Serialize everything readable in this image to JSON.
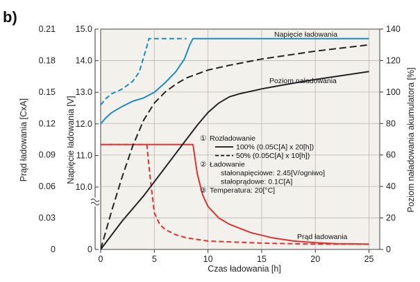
{
  "panel_label": "b)",
  "chart_data": {
    "type": "line",
    "x": {
      "label": "Czas ładowania [h]",
      "range": [
        0,
        26
      ],
      "ticks": [
        0,
        5,
        10,
        15,
        20,
        25
      ],
      "tick_labels": [
        "0",
        "5",
        "10",
        "15",
        "20",
        "25"
      ]
    },
    "y_left_current": {
      "label": "Prąd ładowania [CxA]",
      "range": [
        0,
        0.21
      ],
      "ticks": [
        0,
        0.03,
        0.06,
        0.09,
        0.12,
        0.15,
        0.18,
        0.21
      ],
      "tick_labels": [
        "0",
        "0.03",
        "0.06",
        "0.09",
        "0.12",
        "0.15",
        "0.18",
        "0.21"
      ]
    },
    "y_left_voltage": {
      "label": "Napięcie ładowania [V]",
      "range": [
        0,
        15.0
      ],
      "axis_break": true,
      "ticks": [
        0,
        10.0,
        11.0,
        12.0,
        13.0,
        14.0,
        15.0
      ],
      "tick_labels": [
        "0",
        "10.0",
        "11.0",
        "12.0",
        "13.0",
        "14.0",
        "15.0"
      ]
    },
    "y_right": {
      "label": "Poziom naładowania akumulatora [%]",
      "range": [
        0,
        140
      ],
      "ticks": [
        0,
        20,
        40,
        60,
        80,
        100,
        120,
        140
      ],
      "tick_labels": [
        "0",
        "20",
        "40",
        "60",
        "80",
        "100",
        "120",
        "140"
      ]
    },
    "grid": true,
    "series": [
      {
        "name": "Napięcie ładowania",
        "quantity": "voltage",
        "unit": "V",
        "line": "solid",
        "color": "#1a8bc4",
        "x": [
          0,
          0.5,
          1,
          2,
          3,
          4,
          5,
          6,
          7,
          7.8,
          8.3,
          8.6,
          9,
          12,
          15,
          20,
          25
        ],
        "y": [
          12.0,
          12.2,
          12.35,
          12.55,
          12.72,
          12.82,
          13.0,
          13.3,
          13.65,
          14.05,
          14.5,
          14.7,
          14.7,
          14.7,
          14.7,
          14.7,
          14.7
        ]
      },
      {
        "name": "Napięcie ładowania",
        "quantity": "voltage",
        "unit": "V",
        "line": "dashed",
        "color": "#1a8bc4",
        "x": [
          0,
          0.5,
          1,
          2,
          3,
          3.6,
          4.0,
          4.3,
          4.5,
          5,
          6,
          7,
          8
        ],
        "y": [
          12.6,
          12.8,
          12.95,
          13.1,
          13.35,
          13.65,
          14.1,
          14.45,
          14.7,
          14.7,
          14.7,
          14.7,
          14.7
        ]
      },
      {
        "name": "Prąd ładowania",
        "quantity": "current",
        "unit": "CxA",
        "line": "solid",
        "color": "#e03030",
        "x": [
          0,
          2,
          4,
          6,
          8,
          8.6,
          9,
          9.5,
          10,
          11,
          12,
          14,
          16,
          18,
          20,
          22,
          25
        ],
        "y": [
          0.1,
          0.1,
          0.1,
          0.1,
          0.1,
          0.1,
          0.072,
          0.052,
          0.041,
          0.03,
          0.024,
          0.016,
          0.011,
          0.008,
          0.0065,
          0.0055,
          0.005
        ]
      },
      {
        "name": "Prąd ładowania",
        "quantity": "current",
        "unit": "CxA",
        "line": "dashed",
        "color": "#e03030",
        "x": [
          0,
          2,
          4,
          4.3,
          4.6,
          5,
          5.5,
          6,
          7,
          8,
          10,
          15,
          20,
          25
        ],
        "y": [
          0.1,
          0.1,
          0.1,
          0.1,
          0.07,
          0.035,
          0.024,
          0.019,
          0.014,
          0.011,
          0.008,
          0.006,
          0.005,
          0.005
        ]
      },
      {
        "name": "Poziom naładowania",
        "quantity": "state_of_charge",
        "unit": "%",
        "line": "solid",
        "color": "#222222",
        "x": [
          0,
          2,
          4,
          6,
          8,
          9,
          10,
          11,
          12,
          13,
          15,
          17,
          20,
          23,
          25
        ],
        "y": [
          0,
          18,
          34,
          52,
          70,
          79,
          87,
          93,
          97,
          99,
          102,
          104.5,
          108,
          111,
          113
        ]
      },
      {
        "name": "Poziom naładowania",
        "quantity": "state_of_charge",
        "unit": "%",
        "line": "dashed",
        "color": "#222222",
        "x": [
          0,
          1,
          2,
          3,
          4,
          5,
          6,
          7,
          8,
          10,
          12,
          15,
          20,
          25
        ],
        "y": [
          0,
          24,
          46,
          66,
          82,
          93,
          100,
          105,
          109,
          114,
          117,
          121,
          126,
          130
        ]
      }
    ],
    "annotations": [
      {
        "text": "Napięcie ładowania",
        "color": "#111111"
      },
      {
        "text": "Poziom naładowania",
        "color": "#111111"
      },
      {
        "text": "Prąd ładowania",
        "color": "#111111"
      }
    ],
    "legend": {
      "placement": "center",
      "items": [
        {
          "marker": "①",
          "text": "Rozładowanie"
        },
        {
          "sample": "solid",
          "text": "100% (0.05C[A] x 20[h])"
        },
        {
          "sample": "dashed",
          "text": "50% (0.05C[A] x 10[h])"
        },
        {
          "marker": "②",
          "text": "Ładowanie"
        },
        {
          "text": "stałonapięciowe: 2.45[V/ogniwo]"
        },
        {
          "text": "stałoprądowe: 0.1C[A]"
        },
        {
          "marker": "③",
          "text": "Temperatura: 20[°C]"
        }
      ]
    }
  }
}
